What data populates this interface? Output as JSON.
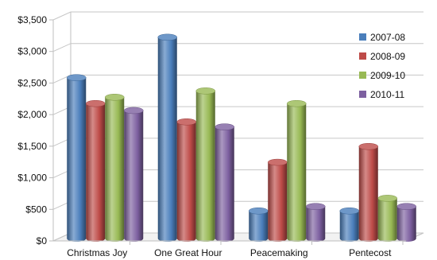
{
  "chart_data": {
    "type": "bar",
    "categories": [
      "Christmas Joy",
      "One Great Hour",
      "Peacemaking",
      "Pentecost"
    ],
    "series": [
      {
        "name": "2007-08",
        "color": "#4a7ebb",
        "values": [
          2560,
          3200,
          450,
          450
        ]
      },
      {
        "name": "2008-09",
        "color": "#be4b48",
        "values": [
          2150,
          1860,
          1220,
          1470
        ]
      },
      {
        "name": "2009-10",
        "color": "#98b954",
        "values": [
          2250,
          2350,
          2150,
          650
        ]
      },
      {
        "name": "2010-11",
        "color": "#7d60a0",
        "values": [
          2040,
          1780,
          520,
          520
        ]
      }
    ],
    "ylim": [
      0,
      3500
    ],
    "yticks": [
      {
        "value": 0,
        "label": "$0"
      },
      {
        "value": 500,
        "label": "$500"
      },
      {
        "value": 1000,
        "label": "$1,000"
      },
      {
        "value": 1500,
        "label": "$1,500"
      },
      {
        "value": 2000,
        "label": "$2,000"
      },
      {
        "value": 2500,
        "label": "$2,500"
      },
      {
        "value": 3000,
        "label": "$3,000"
      },
      {
        "value": 3500,
        "label": "$3,500"
      }
    ],
    "grid": true,
    "legend": "right",
    "title": "",
    "xlabel": "",
    "ylabel": ""
  }
}
